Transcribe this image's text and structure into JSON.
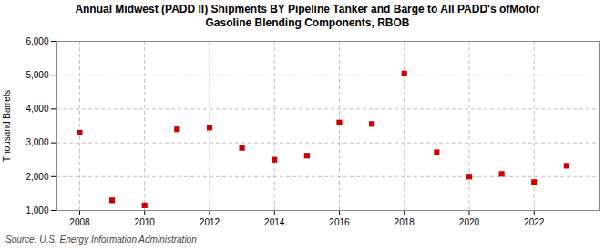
{
  "chart_data": {
    "type": "scatter",
    "title": "Annual Midwest (PADD II) Shipments BY Pipeline Tanker and Barge to All PADD's ofMotor\nGasoline Blending Components, RBOB",
    "ylabel": "Thousand Barrels",
    "source": "Source: U.S. Energy Information Administration",
    "x": [
      2008,
      2009,
      2010,
      2011,
      2012,
      2013,
      2014,
      2015,
      2016,
      2017,
      2018,
      2019,
      2020,
      2021,
      2022,
      2023
    ],
    "values": [
      3300,
      1300,
      1150,
      3400,
      3450,
      2850,
      2500,
      2620,
      3600,
      3560,
      5050,
      2720,
      2000,
      2080,
      1840,
      2320
    ],
    "color": "#cc0000",
    "marker": "square",
    "grid": true,
    "xlim": [
      2007.3,
      2024.0
    ],
    "xticks": [
      2008,
      2010,
      2012,
      2014,
      2016,
      2018,
      2020,
      2022
    ],
    "ylim": [
      1000,
      6000
    ],
    "yticks": [
      {
        "value": 1000,
        "label": "1,000"
      },
      {
        "value": 2000,
        "label": "2,000"
      },
      {
        "value": 3000,
        "label": "3,000"
      },
      {
        "value": 4000,
        "label": "4,000"
      },
      {
        "value": 5000,
        "label": "5,000"
      },
      {
        "value": 6000,
        "label": "6,000"
      }
    ]
  }
}
